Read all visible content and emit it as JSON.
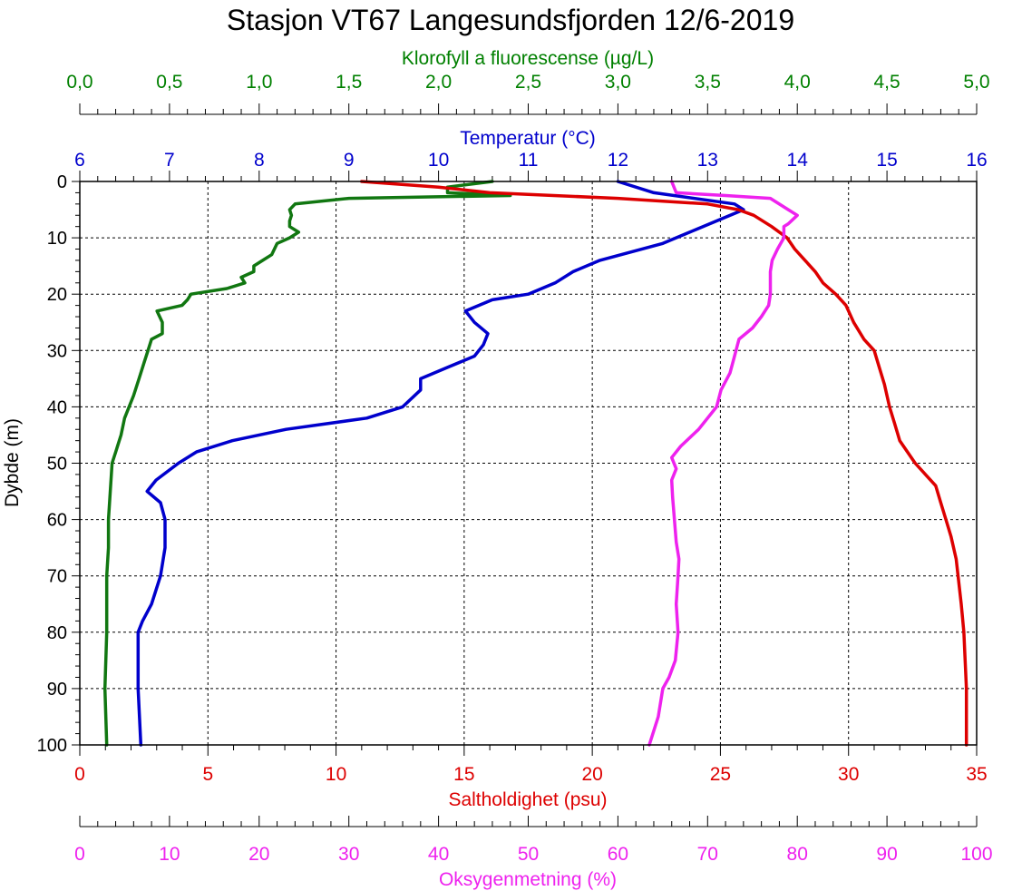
{
  "chart_data": {
    "type": "line",
    "title": "Stasjon VT67 Langesundsfjorden 12/6-2019",
    "ylabel": "Dybde (m)",
    "ylim": [
      0,
      100
    ],
    "yticks": [
      0,
      10,
      20,
      30,
      40,
      50,
      60,
      70,
      80,
      90,
      100
    ],
    "ytick_labels": [
      "0",
      "10",
      "20",
      "30",
      "40",
      "50",
      "60",
      "70",
      "80",
      "90",
      "100"
    ],
    "y_inverted": true,
    "grid": true,
    "axes": {
      "chl": {
        "label": "Klorofyll a fluorescense (µg/L)",
        "range": [
          0,
          5
        ],
        "ticks": [
          0,
          0.5,
          1,
          1.5,
          2,
          2.5,
          3,
          3.5,
          4,
          4.5,
          5
        ],
        "tick_labels": [
          "0,0",
          "0,5",
          "1,0",
          "1,5",
          "2,0",
          "2,5",
          "3,0",
          "3,5",
          "4,0",
          "4,5",
          "5,0"
        ],
        "color": "#008000",
        "position": "top"
      },
      "temp": {
        "label": "Temperatur (°C)",
        "range": [
          6,
          16
        ],
        "ticks": [
          6,
          7,
          8,
          9,
          10,
          11,
          12,
          13,
          14,
          15,
          16
        ],
        "tick_labels": [
          "6",
          "7",
          "8",
          "9",
          "10",
          "11",
          "12",
          "13",
          "14",
          "15",
          "16"
        ],
        "color": "#0000cc",
        "position": "top"
      },
      "sal": {
        "label": "Saltholdighet (psu)",
        "range": [
          0,
          35
        ],
        "ticks": [
          0,
          5,
          10,
          15,
          20,
          25,
          30,
          35
        ],
        "tick_labels": [
          "0",
          "5",
          "10",
          "15",
          "20",
          "25",
          "30",
          "35"
        ],
        "color": "#dd0000",
        "position": "bottom"
      },
      "oxy": {
        "label": "Oksygenmetning (%)",
        "range": [
          0,
          100
        ],
        "ticks": [
          0,
          10,
          20,
          30,
          40,
          50,
          60,
          70,
          80,
          90,
          100
        ],
        "tick_labels": [
          "0",
          "10",
          "20",
          "30",
          "40",
          "50",
          "60",
          "70",
          "80",
          "90",
          "100"
        ],
        "color": "#ee22ee",
        "position": "bottom"
      }
    },
    "series": [
      {
        "axis": "chl",
        "color": "#117711",
        "points": [
          [
            2.3,
            0
          ],
          [
            2.05,
            1
          ],
          [
            2.05,
            2
          ],
          [
            2.4,
            2.5
          ],
          [
            1.5,
            3
          ],
          [
            1.2,
            4
          ],
          [
            1.17,
            5
          ],
          [
            1.18,
            6
          ],
          [
            1.17,
            7
          ],
          [
            1.17,
            8
          ],
          [
            1.22,
            9
          ],
          [
            1.17,
            10
          ],
          [
            1.1,
            11
          ],
          [
            1.07,
            13
          ],
          [
            1.02,
            14
          ],
          [
            0.97,
            15
          ],
          [
            0.97,
            16
          ],
          [
            0.9,
            17
          ],
          [
            0.92,
            18
          ],
          [
            0.82,
            19
          ],
          [
            0.62,
            20
          ],
          [
            0.6,
            21
          ],
          [
            0.57,
            22
          ],
          [
            0.43,
            23
          ],
          [
            0.46,
            25
          ],
          [
            0.46,
            27
          ],
          [
            0.4,
            28
          ],
          [
            0.38,
            30
          ],
          [
            0.36,
            32
          ],
          [
            0.33,
            35
          ],
          [
            0.3,
            38
          ],
          [
            0.25,
            42
          ],
          [
            0.23,
            45
          ],
          [
            0.2,
            48
          ],
          [
            0.18,
            50
          ],
          [
            0.17,
            55
          ],
          [
            0.16,
            60
          ],
          [
            0.16,
            65
          ],
          [
            0.15,
            70
          ],
          [
            0.15,
            80
          ],
          [
            0.14,
            90
          ],
          [
            0.15,
            100
          ]
        ]
      },
      {
        "axis": "temp",
        "color": "#0000cc",
        "points": [
          [
            12,
            0
          ],
          [
            12.4,
            2
          ],
          [
            13.3,
            4
          ],
          [
            13.4,
            5
          ],
          [
            13.1,
            7
          ],
          [
            12.8,
            9
          ],
          [
            12.5,
            11
          ],
          [
            11.8,
            14
          ],
          [
            11.5,
            16
          ],
          [
            11.3,
            18
          ],
          [
            11,
            20
          ],
          [
            10.6,
            21
          ],
          [
            10.3,
            23
          ],
          [
            10.4,
            25
          ],
          [
            10.55,
            27
          ],
          [
            10.5,
            29
          ],
          [
            10.4,
            31
          ],
          [
            10.1,
            33
          ],
          [
            9.8,
            35
          ],
          [
            9.8,
            37
          ],
          [
            9.6,
            40
          ],
          [
            9.2,
            42
          ],
          [
            8.3,
            44
          ],
          [
            7.7,
            46
          ],
          [
            7.3,
            48
          ],
          [
            7.1,
            50
          ],
          [
            6.85,
            53
          ],
          [
            6.75,
            55
          ],
          [
            6.9,
            57
          ],
          [
            6.95,
            60
          ],
          [
            6.95,
            65
          ],
          [
            6.9,
            70
          ],
          [
            6.8,
            75
          ],
          [
            6.7,
            78
          ],
          [
            6.65,
            80
          ],
          [
            6.65,
            85
          ],
          [
            6.65,
            90
          ],
          [
            6.68,
            100
          ]
        ]
      },
      {
        "axis": "sal",
        "color": "#dd0000",
        "points": [
          [
            11,
            0
          ],
          [
            14,
            1
          ],
          [
            16,
            2
          ],
          [
            21,
            3
          ],
          [
            24.5,
            4
          ],
          [
            25.7,
            5
          ],
          [
            26.3,
            6
          ],
          [
            27,
            8
          ],
          [
            27.6,
            10
          ],
          [
            27.9,
            12
          ],
          [
            28.3,
            14
          ],
          [
            28.7,
            16
          ],
          [
            29,
            18
          ],
          [
            29.5,
            20
          ],
          [
            29.9,
            22
          ],
          [
            30.2,
            25
          ],
          [
            30.6,
            28
          ],
          [
            31,
            30
          ],
          [
            31.2,
            33
          ],
          [
            31.4,
            36
          ],
          [
            31.6,
            40
          ],
          [
            31.8,
            43
          ],
          [
            32,
            46
          ],
          [
            32.3,
            48
          ],
          [
            32.6,
            50
          ],
          [
            33,
            52
          ],
          [
            33.4,
            54
          ],
          [
            33.6,
            57
          ],
          [
            33.8,
            60
          ],
          [
            34,
            63
          ],
          [
            34.2,
            67
          ],
          [
            34.3,
            71
          ],
          [
            34.4,
            75
          ],
          [
            34.5,
            80
          ],
          [
            34.55,
            85
          ],
          [
            34.6,
            90
          ],
          [
            34.6,
            95
          ],
          [
            34.6,
            100
          ]
        ]
      },
      {
        "axis": "oxy",
        "color": "#ee22ee",
        "points": [
          [
            66,
            0
          ],
          [
            66.5,
            2
          ],
          [
            72,
            2.5
          ],
          [
            77,
            3
          ],
          [
            79,
            5
          ],
          [
            80,
            6
          ],
          [
            79,
            7.5
          ],
          [
            78.5,
            8
          ],
          [
            78.5,
            10
          ],
          [
            77.8,
            12
          ],
          [
            77.2,
            14
          ],
          [
            77,
            16
          ],
          [
            77,
            18
          ],
          [
            77,
            20
          ],
          [
            76.8,
            22
          ],
          [
            76,
            24
          ],
          [
            75,
            26
          ],
          [
            73.5,
            28
          ],
          [
            73,
            31
          ],
          [
            72.5,
            34
          ],
          [
            71.5,
            37
          ],
          [
            71,
            40
          ],
          [
            69,
            44
          ],
          [
            67,
            47
          ],
          [
            66,
            49
          ],
          [
            66.5,
            51
          ],
          [
            66,
            53
          ],
          [
            66.1,
            56
          ],
          [
            66.3,
            60
          ],
          [
            66.5,
            64
          ],
          [
            66.8,
            67
          ],
          [
            66.7,
            70
          ],
          [
            66.5,
            75
          ],
          [
            66.7,
            80
          ],
          [
            66.4,
            85
          ],
          [
            65.7,
            88
          ],
          [
            65,
            90
          ],
          [
            64.5,
            95
          ],
          [
            63.5,
            100
          ]
        ]
      }
    ]
  }
}
